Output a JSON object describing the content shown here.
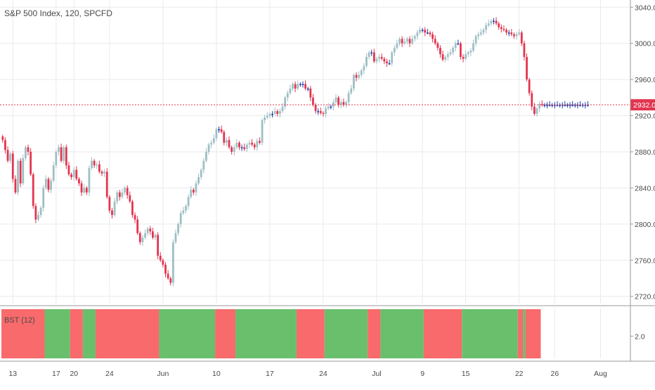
{
  "header": {
    "symbol": "S&P 500 Index",
    "interval": "120",
    "source": "SPCFD",
    "title": "S&P 500 Index, 120, SPCFD"
  },
  "colors": {
    "bull": "#9ebfc4",
    "bear": "#e3354f",
    "neutral": "#1f3ea8",
    "band_red": "#f86a6c",
    "band_green": "#6abf6d",
    "grid": "#e8eaee",
    "price_line": "#e3354f",
    "price_label_bg": "#e3354f",
    "text": "#4a4a4a"
  },
  "price_label": "2932.0",
  "chart_data": [
    {
      "type": "candlestick",
      "title": "S&P 500 Index, 120, SPCFD",
      "ylim": [
        2712,
        3048
      ],
      "y_ticks": [
        "3040.0",
        "3000.0",
        "2960.0",
        "2920.0",
        "2880.0",
        "2840.0",
        "2800.0",
        "2760.0",
        "2720.0"
      ],
      "current_price": 2932.0,
      "x_ticks": [
        {
          "label": "13",
          "index": 4
        },
        {
          "label": "17",
          "index": 21
        },
        {
          "label": "20",
          "index": 28
        },
        {
          "label": "24",
          "index": 42
        },
        {
          "label": "Jun",
          "index": 63
        },
        {
          "label": "10",
          "index": 84
        },
        {
          "label": "17",
          "index": 105
        },
        {
          "label": "24",
          "index": 126
        },
        {
          "label": "Jul",
          "index": 147
        },
        {
          "label": "9",
          "index": 165
        },
        {
          "label": "15",
          "index": 182
        },
        {
          "label": "22",
          "index": 203
        },
        {
          "label": "26",
          "index": 217
        },
        {
          "label": "Aug",
          "index": 235
        }
      ],
      "close": [
        2893,
        2882,
        2870,
        2878,
        2850,
        2835,
        2870,
        2845,
        2873,
        2885,
        2880,
        2855,
        2820,
        2805,
        2810,
        2818,
        2840,
        2850,
        2838,
        2848,
        2865,
        2880,
        2885,
        2870,
        2885,
        2865,
        2855,
        2852,
        2860,
        2850,
        2845,
        2835,
        2840,
        2835,
        2862,
        2870,
        2865,
        2866,
        2858,
        2856,
        2858,
        2830,
        2815,
        2810,
        2825,
        2835,
        2830,
        2835,
        2840,
        2832,
        2825,
        2810,
        2805,
        2790,
        2780,
        2785,
        2790,
        2795,
        2792,
        2785,
        2788,
        2765,
        2760,
        2755,
        2745,
        2740,
        2735,
        2780,
        2790,
        2800,
        2812,
        2815,
        2820,
        2830,
        2838,
        2835,
        2845,
        2852,
        2860,
        2870,
        2880,
        2888,
        2890,
        2895,
        2905,
        2905,
        2902,
        2890,
        2893,
        2885,
        2880,
        2885,
        2890,
        2885,
        2885,
        2883,
        2888,
        2890,
        2888,
        2885,
        2892,
        2890,
        2915,
        2918,
        2920,
        2922,
        2922,
        2925,
        2922,
        2925,
        2930,
        2940,
        2945,
        2950,
        2955,
        2950,
        2955,
        2955,
        2955,
        2950,
        2950,
        2940,
        2932,
        2925,
        2925,
        2923,
        2922,
        2928,
        2930,
        2930,
        2935,
        2940,
        2932,
        2935,
        2932,
        2935,
        2945,
        2950,
        2965,
        2962,
        2965,
        2970,
        2975,
        2985,
        2990,
        2990,
        2980,
        2983,
        2985,
        2983,
        2980,
        2978,
        2978,
        2990,
        2995,
        3000,
        3005,
        3000,
        3002,
        3005,
        3000,
        3005,
        3008,
        3012,
        3015,
        3015,
        3012,
        3012,
        3010,
        3005,
        3000,
        2995,
        2988,
        2982,
        2985,
        2988,
        2990,
        2995,
        3000,
        3000,
        2985,
        2983,
        2988,
        2990,
        2992,
        3000,
        3008,
        3010,
        3012,
        3015,
        3020,
        3022,
        3025,
        3025,
        3022,
        3018,
        3016,
        3015,
        3012,
        3012,
        3010,
        3008,
        3010,
        3012,
        3000,
        2985,
        2960,
        2945,
        2930,
        2922,
        2928,
        2933,
        2932,
        2932,
        2932,
        2932,
        2932,
        2932,
        2932,
        2932,
        2932,
        2932,
        2932,
        2932,
        2932,
        2932,
        2932,
        2932,
        2932,
        2932,
        2932
      ],
      "indicator": {
        "title": "BST (12)",
        "y_tick": "2.0",
        "segments": [
          {
            "state": "bear",
            "from": 0,
            "to": 17
          },
          {
            "state": "bull",
            "from": 17,
            "to": 27
          },
          {
            "state": "bear",
            "from": 27,
            "to": 32
          },
          {
            "state": "bull",
            "from": 32,
            "to": 37
          },
          {
            "state": "bear",
            "from": 37,
            "to": 62
          },
          {
            "state": "bull",
            "from": 62,
            "to": 84
          },
          {
            "state": "bear",
            "from": 84,
            "to": 92
          },
          {
            "state": "bull",
            "from": 92,
            "to": 116
          },
          {
            "state": "bear",
            "from": 116,
            "to": 127
          },
          {
            "state": "bull",
            "from": 127,
            "to": 144
          },
          {
            "state": "bear",
            "from": 144,
            "to": 149
          },
          {
            "state": "bull",
            "from": 149,
            "to": 166
          },
          {
            "state": "bear",
            "from": 166,
            "to": 181
          },
          {
            "state": "bull",
            "from": 181,
            "to": 203
          },
          {
            "state": "bear",
            "from": 203,
            "to": 205
          },
          {
            "state": "bull",
            "from": 205,
            "to": 206
          },
          {
            "state": "bear",
            "from": 206,
            "to": 212
          }
        ]
      }
    }
  ]
}
